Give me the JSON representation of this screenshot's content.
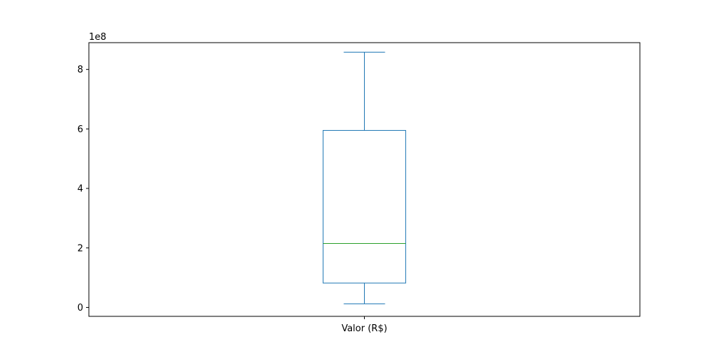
{
  "chart_data": {
    "type": "box",
    "categories": [
      "Valor (R$)"
    ],
    "exponent_label": "1e8",
    "scale_factor": 100000000,
    "ylim": [
      -0.3,
      8.9
    ],
    "yticks": [
      {
        "value": 0,
        "label": "0"
      },
      {
        "value": 2,
        "label": "2"
      },
      {
        "value": 4,
        "label": "4"
      },
      {
        "value": 6,
        "label": "6"
      },
      {
        "value": 8,
        "label": "8"
      }
    ],
    "boxes": [
      {
        "category": "Valor (R$)",
        "whisker_low": 0.12,
        "q1": 0.82,
        "median": 2.15,
        "q3": 5.95,
        "whisker_high": 8.58
      }
    ],
    "colors": {
      "box": "#1f77b4",
      "median": "#2ca02c",
      "axes": "#000000"
    },
    "grid": false
  }
}
